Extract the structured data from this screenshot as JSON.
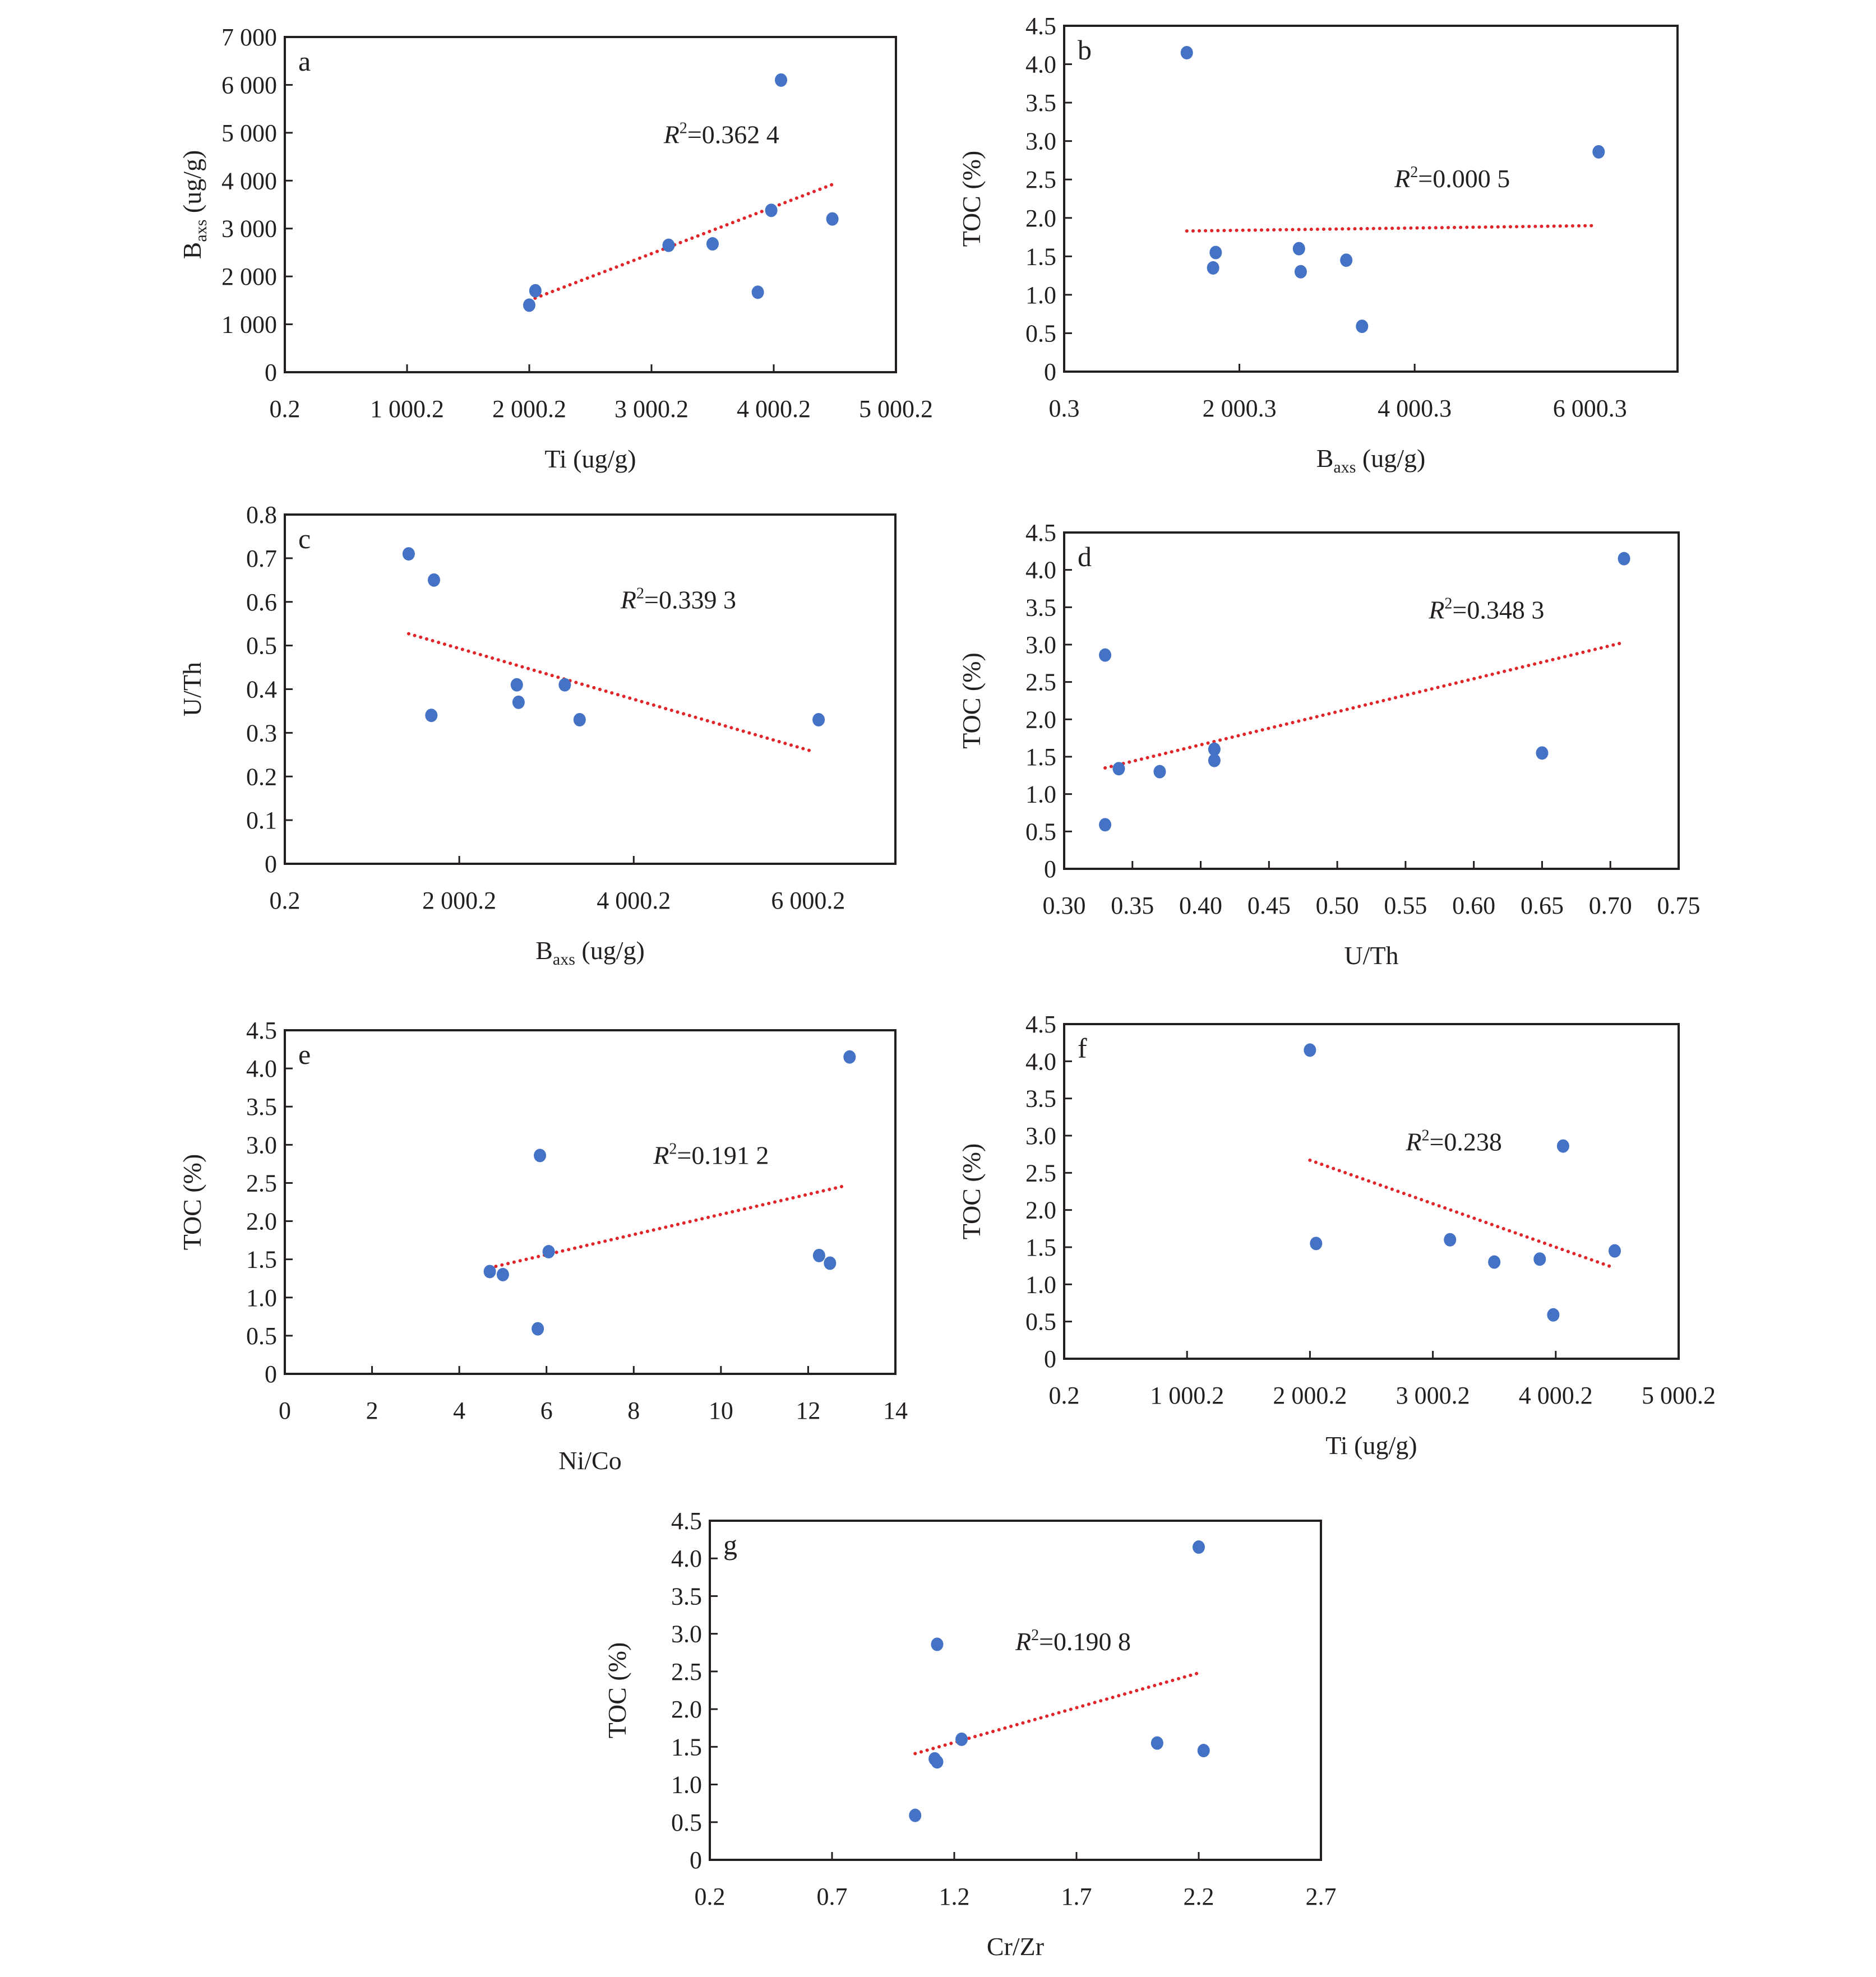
{
  "colors": {
    "point": "#4472c4",
    "trendline": "#e0262b",
    "axis": "#231f20"
  },
  "chart_data": [
    {
      "id": "a",
      "type": "scatter",
      "panel_label": "a",
      "xlabel": "Ti (ug/g)",
      "ylabel_main": "B",
      "ylabel_sub": "axs",
      "ylabel_tail": " (ug/g)",
      "xlim": [
        0.2,
        5000.2
      ],
      "ylim": [
        0,
        7000
      ],
      "xticks": [
        0.2,
        1000.2,
        2000.2,
        3000.2,
        4000.2,
        5000.2
      ],
      "xtick_labels": [
        "0.2",
        "1 000.2",
        "2 000.2",
        "3 000.2",
        "4 000.2",
        "5 000.2"
      ],
      "yticks": [
        0,
        1000,
        2000,
        3000,
        4000,
        5000,
        6000,
        7000
      ],
      "ytick_labels": [
        "0",
        "1 000",
        "2 000",
        "3 000",
        "4 000",
        "5 000",
        "6 000",
        "7 000"
      ],
      "points": [
        [
          2000,
          1400
        ],
        [
          2050,
          1700
        ],
        [
          3140,
          2650
        ],
        [
          3500,
          2680
        ],
        [
          3870,
          1670
        ],
        [
          3980,
          3380
        ],
        [
          4060,
          6100
        ],
        [
          4480,
          3200
        ]
      ],
      "trendline": [
        [
          2000,
          1500
        ],
        [
          4480,
          3920
        ]
      ],
      "r2_label": "=0.362 4",
      "r2_pos": [
        3100,
        4780
      ]
    },
    {
      "id": "b",
      "type": "scatter",
      "panel_label": "b",
      "xlabel_main": "B",
      "xlabel_sub": "axs",
      "xlabel_tail": " (ug/g)",
      "ylabel": "TOC (%)",
      "xlim": [
        0.3,
        7000.3
      ],
      "ylim": [
        0,
        4.5
      ],
      "xticks": [
        0.3,
        2000.3,
        4000.3,
        6000.3
      ],
      "xtick_labels": [
        "0.3",
        "2 000.3",
        "4 000.3",
        "6 000.3"
      ],
      "yticks": [
        0,
        0.5,
        1.0,
        1.5,
        2.0,
        2.5,
        3.0,
        3.5,
        4.0,
        4.5
      ],
      "ytick_labels": [
        "0",
        "0.5",
        "1.0",
        "1.5",
        "2.0",
        "2.5",
        "3.0",
        "3.5",
        "4.0",
        "4.5"
      ],
      "points": [
        [
          1400,
          4.15
        ],
        [
          1700,
          1.35
        ],
        [
          1730,
          1.55
        ],
        [
          2680,
          1.6
        ],
        [
          2700,
          1.3
        ],
        [
          3220,
          1.45
        ],
        [
          3400,
          0.59
        ],
        [
          6100,
          2.86
        ]
      ],
      "trendline": [
        [
          1400,
          1.83
        ],
        [
          6060,
          1.9
        ]
      ],
      "r2_label": "=0.000 5",
      "r2_pos": [
        3770,
        2.4
      ]
    },
    {
      "id": "c",
      "type": "scatter",
      "panel_label": "c",
      "xlabel_main": "B",
      "xlabel_sub": "axs",
      "xlabel_tail": " (ug/g)",
      "ylabel": "U/Th",
      "xlim": [
        0.2,
        7000.2
      ],
      "ylim": [
        0,
        0.8
      ],
      "xticks": [
        0.2,
        2000.2,
        4000.2,
        6000.2
      ],
      "xtick_labels": [
        "0.2",
        "2 000.2",
        "4 000.2",
        "6 000.2"
      ],
      "yticks": [
        0,
        0.1,
        0.2,
        0.3,
        0.4,
        0.5,
        0.6,
        0.7,
        0.8
      ],
      "ytick_labels": [
        "0",
        "0.1",
        "0.2",
        "0.3",
        "0.4",
        "0.5",
        "0.6",
        "0.7",
        "0.8"
      ],
      "points": [
        [
          1420,
          0.71
        ],
        [
          1710,
          0.65
        ],
        [
          1680,
          0.34
        ],
        [
          2660,
          0.41
        ],
        [
          2680,
          0.37
        ],
        [
          3210,
          0.41
        ],
        [
          3380,
          0.33
        ],
        [
          6120,
          0.33
        ]
      ],
      "trendline": [
        [
          1420,
          0.527
        ],
        [
          6060,
          0.257
        ]
      ],
      "r2_label": "=0.339 3",
      "r2_pos": [
        3850,
        0.585
      ]
    },
    {
      "id": "d",
      "type": "scatter",
      "panel_label": "d",
      "xlabel": "U/Th",
      "ylabel": "TOC (%)",
      "xlim": [
        0.3,
        0.75
      ],
      "ylim": [
        0,
        4.5
      ],
      "xticks": [
        0.3,
        0.35,
        0.4,
        0.45,
        0.5,
        0.55,
        0.6,
        0.65,
        0.7,
        0.75
      ],
      "xtick_labels": [
        "0.30",
        "0.35",
        "0.40",
        "0.45",
        "0.50",
        "0.55",
        "0.60",
        "0.65",
        "0.70",
        "0.75"
      ],
      "yticks": [
        0,
        0.5,
        1.0,
        1.5,
        2.0,
        2.5,
        3.0,
        3.5,
        4.0,
        4.5
      ],
      "ytick_labels": [
        "0",
        "0.5",
        "1.0",
        "1.5",
        "2.0",
        "2.5",
        "3.0",
        "3.5",
        "4.0",
        "4.5"
      ],
      "points": [
        [
          0.33,
          2.86
        ],
        [
          0.33,
          0.59
        ],
        [
          0.34,
          1.34
        ],
        [
          0.37,
          1.3
        ],
        [
          0.41,
          1.6
        ],
        [
          0.41,
          1.45
        ],
        [
          0.65,
          1.55
        ],
        [
          0.71,
          4.15
        ]
      ],
      "trendline": [
        [
          0.33,
          1.35
        ],
        [
          0.71,
          3.03
        ]
      ],
      "r2_label": "=0.348 3",
      "r2_pos": [
        0.567,
        3.35
      ]
    },
    {
      "id": "e",
      "type": "scatter",
      "panel_label": "e",
      "xlabel": "Ni/Co",
      "ylabel": "TOC (%)",
      "xlim": [
        0,
        14
      ],
      "ylim": [
        0,
        4.5
      ],
      "xticks": [
        0,
        2,
        4,
        6,
        8,
        10,
        12,
        14
      ],
      "xtick_labels": [
        "0",
        "2",
        "4",
        "6",
        "8",
        "10",
        "12",
        "14"
      ],
      "yticks": [
        0,
        0.5,
        1.0,
        1.5,
        2.0,
        2.5,
        3.0,
        3.5,
        4.0,
        4.5
      ],
      "ytick_labels": [
        "0",
        "0.5",
        "1.0",
        "1.5",
        "2.0",
        "2.5",
        "3.0",
        "3.5",
        "4.0",
        "4.5"
      ],
      "points": [
        [
          4.7,
          1.34
        ],
        [
          5.0,
          1.3
        ],
        [
          5.85,
          2.86
        ],
        [
          5.8,
          0.59
        ],
        [
          6.05,
          1.6
        ],
        [
          12.25,
          1.55
        ],
        [
          12.5,
          1.45
        ],
        [
          12.95,
          4.15
        ]
      ],
      "trendline": [
        [
          4.7,
          1.39
        ],
        [
          12.9,
          2.47
        ]
      ],
      "r2_label": "=0.191 2",
      "r2_pos": [
        8.45,
        2.75
      ]
    },
    {
      "id": "f",
      "type": "scatter",
      "panel_label": "f",
      "xlabel": "Ti (ug/g)",
      "ylabel": "TOC (%)",
      "xlim": [
        0.2,
        5000.2
      ],
      "ylim": [
        0,
        4.5
      ],
      "xticks": [
        0.2,
        1000.2,
        2000.2,
        3000.2,
        4000.2,
        5000.2
      ],
      "xtick_labels": [
        "0.2",
        "1 000.2",
        "2 000.2",
        "3 000.2",
        "4 000.2",
        "5 000.2"
      ],
      "yticks": [
        0,
        0.5,
        1.0,
        1.5,
        2.0,
        2.5,
        3.0,
        3.5,
        4.0,
        4.5
      ],
      "ytick_labels": [
        "0",
        "0.5",
        "1.0",
        "1.5",
        "2.0",
        "2.5",
        "3.0",
        "3.5",
        "4.0",
        "4.5"
      ],
      "points": [
        [
          2000,
          4.15
        ],
        [
          2050,
          1.55
        ],
        [
          3140,
          1.6
        ],
        [
          3500,
          1.3
        ],
        [
          3870,
          1.34
        ],
        [
          3980,
          0.59
        ],
        [
          4060,
          2.86
        ],
        [
          4480,
          1.45
        ]
      ],
      "trendline": [
        [
          2000,
          2.67
        ],
        [
          4480,
          1.22
        ]
      ],
      "r2_label": "=0.238",
      "r2_pos": [
        2780,
        2.8
      ]
    },
    {
      "id": "g",
      "type": "scatter",
      "panel_label": "g",
      "xlabel": "Cr/Zr",
      "ylabel": "TOC (%)",
      "xlim": [
        0.2,
        2.7
      ],
      "ylim": [
        0,
        4.5
      ],
      "xticks": [
        0.2,
        0.7,
        1.2,
        1.7,
        2.2,
        2.7
      ],
      "xtick_labels": [
        "0.2",
        "0.7",
        "1.2",
        "1.7",
        "2.2",
        "2.7"
      ],
      "yticks": [
        0,
        0.5,
        1.0,
        1.5,
        2.0,
        2.5,
        3.0,
        3.5,
        4.0,
        4.5
      ],
      "ytick_labels": [
        "0",
        "0.5",
        "1.0",
        "1.5",
        "2.0",
        "2.5",
        "3.0",
        "3.5",
        "4.0",
        "4.5"
      ],
      "points": [
        [
          1.04,
          0.59
        ],
        [
          1.12,
          1.34
        ],
        [
          1.13,
          1.3
        ],
        [
          1.13,
          2.86
        ],
        [
          1.23,
          1.6
        ],
        [
          2.03,
          1.55
        ],
        [
          2.2,
          4.15
        ],
        [
          2.22,
          1.45
        ]
      ],
      "trendline": [
        [
          1.04,
          1.41
        ],
        [
          2.2,
          2.48
        ]
      ],
      "r2_label": "=0.190 8",
      "r2_pos": [
        1.45,
        2.78
      ]
    }
  ]
}
